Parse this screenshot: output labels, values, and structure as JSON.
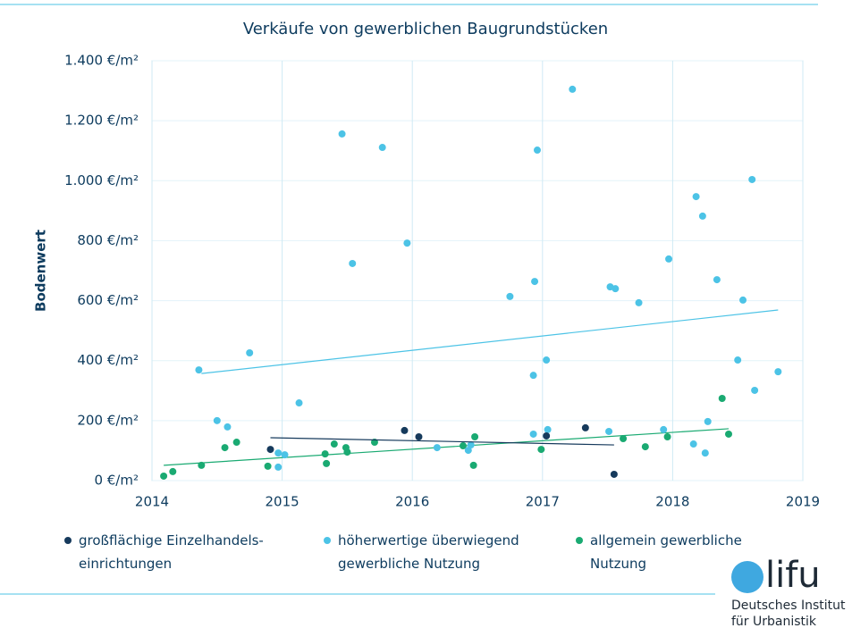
{
  "chart_data": {
    "type": "scatter",
    "title": "Verkäufe von gewerblichen Baugrundstücken",
    "y_label": "Bodenwert",
    "xlim": [
      2014,
      2019
    ],
    "xticks": [
      2014,
      2015,
      2016,
      2017,
      2018,
      2019
    ],
    "ylim": [
      0,
      1400
    ],
    "yticks": [
      {
        "value": 0,
        "label": "0 €/m²"
      },
      {
        "value": 200,
        "label": "200 €/m²"
      },
      {
        "value": 400,
        "label": "400 €/m²"
      },
      {
        "value": 600,
        "label": "600 €/m²"
      },
      {
        "value": 800,
        "label": "800 €/m²"
      },
      {
        "value": 1000,
        "label": "1.000 €/m²"
      },
      {
        "value": 1200,
        "label": "1.200 €/m²"
      },
      {
        "value": 1400,
        "label": "1.400 €/m²"
      }
    ],
    "grid": true,
    "series": [
      {
        "name": "großflächige Einzelhandels-einrichtungen",
        "color": "#163a5c",
        "x": [
          2014.91,
          2015.94,
          2016.05,
          2017.03,
          2017.33,
          2017.55
        ],
        "values": [
          104,
          167,
          146,
          149,
          176,
          21
        ],
        "trend": {
          "x": [
            2014.91,
            2017.55
          ],
          "y": [
            143,
            119
          ]
        }
      },
      {
        "name": "höherwertige überwiegend gewerbliche Nutzung",
        "color": "#4cc3e6",
        "x": [
          2014.36,
          2014.5,
          2014.58,
          2014.75,
          2014.97,
          2014.97,
          2015.02,
          2015.13,
          2015.46,
          2015.54,
          2015.77,
          2015.96,
          2016.19,
          2016.43,
          2016.45,
          2016.75,
          2016.93,
          2016.93,
          2016.94,
          2016.96,
          2017.03,
          2017.04,
          2017.23,
          2017.51,
          2017.52,
          2017.56,
          2017.74,
          2017.93,
          2017.97,
          2018.16,
          2018.18,
          2018.23,
          2018.25,
          2018.27,
          2018.34,
          2018.5,
          2018.54,
          2018.61,
          2018.63,
          2018.81
        ],
        "values": [
          369,
          200,
          179,
          426,
          92,
          45,
          86,
          259,
          1156,
          724,
          1111,
          792,
          110,
          101,
          119,
          614,
          351,
          155,
          664,
          1102,
          402,
          170,
          1305,
          164,
          646,
          640,
          593,
          170,
          739,
          122,
          947,
          882,
          92,
          197,
          670,
          402,
          602,
          1004,
          301,
          363
        ],
        "trend": {
          "x": [
            2014.38,
            2018.81
          ],
          "y": [
            357,
            569
          ]
        }
      },
      {
        "name": "allgemein gewerbliche Nutzung",
        "color": "#1aaa72",
        "x": [
          2014.09,
          2014.16,
          2014.38,
          2014.56,
          2014.65,
          2014.89,
          2015.33,
          2015.34,
          2015.4,
          2015.49,
          2015.5,
          2015.71,
          2016.39,
          2016.48,
          2016.47,
          2016.99,
          2017.62,
          2017.79,
          2017.96,
          2018.38,
          2018.43
        ],
        "values": [
          15,
          30,
          51,
          110,
          128,
          48,
          89,
          57,
          122,
          110,
          95,
          128,
          116,
          146,
          51,
          104,
          140,
          113,
          146,
          274,
          155
        ],
        "trend": {
          "x": [
            2014.09,
            2018.43
          ],
          "y": [
            51,
            173
          ]
        }
      }
    ]
  },
  "logo": {
    "mark": "lifu",
    "line1": "Deutsches Institut",
    "line2": "für Urbanistik"
  }
}
